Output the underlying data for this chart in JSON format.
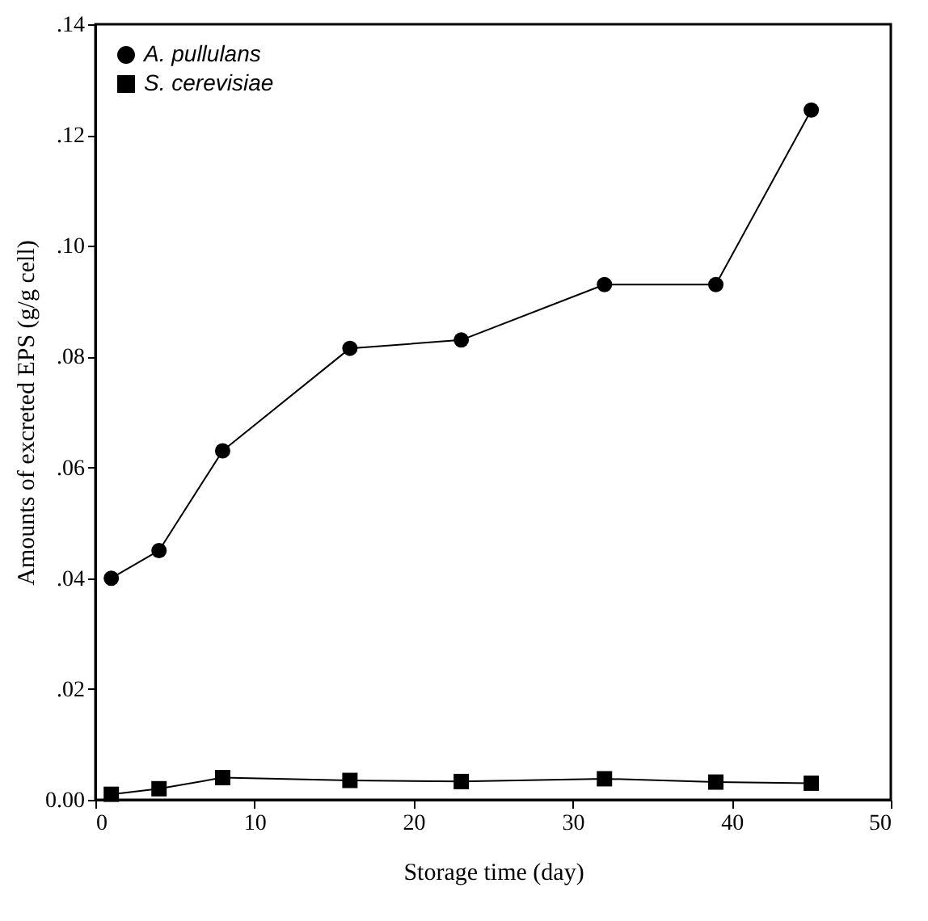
{
  "chart_data": {
    "type": "line",
    "xlabel": "Storage time (day)",
    "ylabel": "Amounts of excreted EPS (g/g cell)",
    "x": [
      1,
      4,
      8,
      16,
      23,
      32,
      39,
      45
    ],
    "series": [
      {
        "name": "A. pullulans",
        "color": "#000000",
        "marker": "circle",
        "values": [
          0.04,
          0.045,
          0.063,
          0.0815,
          0.083,
          0.093,
          0.093,
          0.1245
        ]
      },
      {
        "name": "S. cerevisiae",
        "color": "#000000",
        "marker": "square",
        "values": [
          0.001,
          0.002,
          0.004,
          0.0035,
          0.0033,
          0.0038,
          0.0032,
          0.003
        ]
      }
    ],
    "xlim": [
      0,
      50
    ],
    "xticks": [
      0,
      10,
      20,
      30,
      40,
      50
    ],
    "ylim": [
      0,
      0.14
    ],
    "yticks": [
      {
        "value": 0,
        "label": "0.00"
      },
      {
        "value": 0.02,
        "label": ".02"
      },
      {
        "value": 0.04,
        "label": ".04"
      },
      {
        "value": 0.06,
        "label": ".06"
      },
      {
        "value": 0.08,
        "label": ".08"
      },
      {
        "value": 0.1,
        "label": ".10"
      },
      {
        "value": 0.12,
        "label": ".12"
      },
      {
        "value": 0.14,
        "label": ".14"
      }
    ],
    "grid": false,
    "legend": "top left",
    "line_style": "solid"
  }
}
